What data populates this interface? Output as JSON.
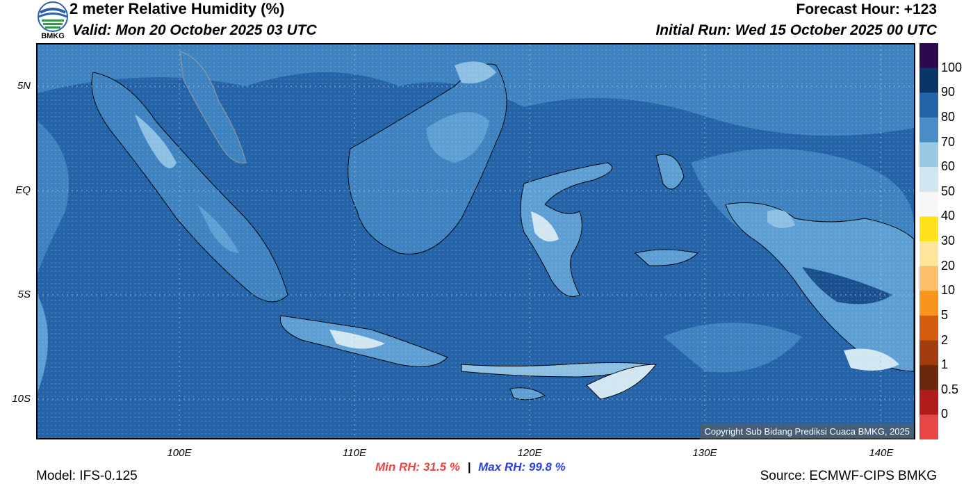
{
  "header": {
    "title": "2 meter Relative Humidity (%)",
    "valid": "Valid: Mon 20 October 2025 03 UTC",
    "forecast_hour": "Forecast Hour: +123",
    "initial_run": "Initial Run: Wed 15 October 2025 00 UTC",
    "logo_text": "BMKG"
  },
  "map": {
    "lat_labels": [
      "5N",
      "EQ",
      "5S",
      "10S"
    ],
    "lon_labels": [
      "100E",
      "110E",
      "120E",
      "130E",
      "140E"
    ],
    "colors": {
      "ocean_dark": "#2463a8",
      "land_mid": "#3f82c0",
      "land_light": "#5e9fd3",
      "land_lighter": "#8dbfe2",
      "very_light": "#d2e6f2",
      "humid_dark": "#1a4f8e",
      "coast": "#000000",
      "border": "#999999"
    },
    "copyright": "Copyright Sub Bidang Prediksi Cuaca BMKG, 2025"
  },
  "colorbar": {
    "labels": [
      "100",
      "90",
      "80",
      "70",
      "60",
      "50",
      "40",
      "30",
      "20",
      "10",
      "5",
      "2",
      "1",
      "0.5",
      "0"
    ],
    "colors": [
      "#2d0a4e",
      "#0b3567",
      "#2463a8",
      "#4a8cc6",
      "#99c8e5",
      "#d2e6f2",
      "#f7f7f7",
      "#fde21c",
      "#fde59c",
      "#fcc06a",
      "#f9941c",
      "#d65d0e",
      "#a23c0c",
      "#6b2810",
      "#b01c1c",
      "#e84545"
    ]
  },
  "stats": {
    "min_label": "Min RH:",
    "min_value": "31.5 %",
    "max_label": "Max RH:",
    "max_value": "99.8 %"
  },
  "footer": {
    "model": "Model: IFS-0.125",
    "source": "Source: ECMWF-CIPS BMKG"
  }
}
